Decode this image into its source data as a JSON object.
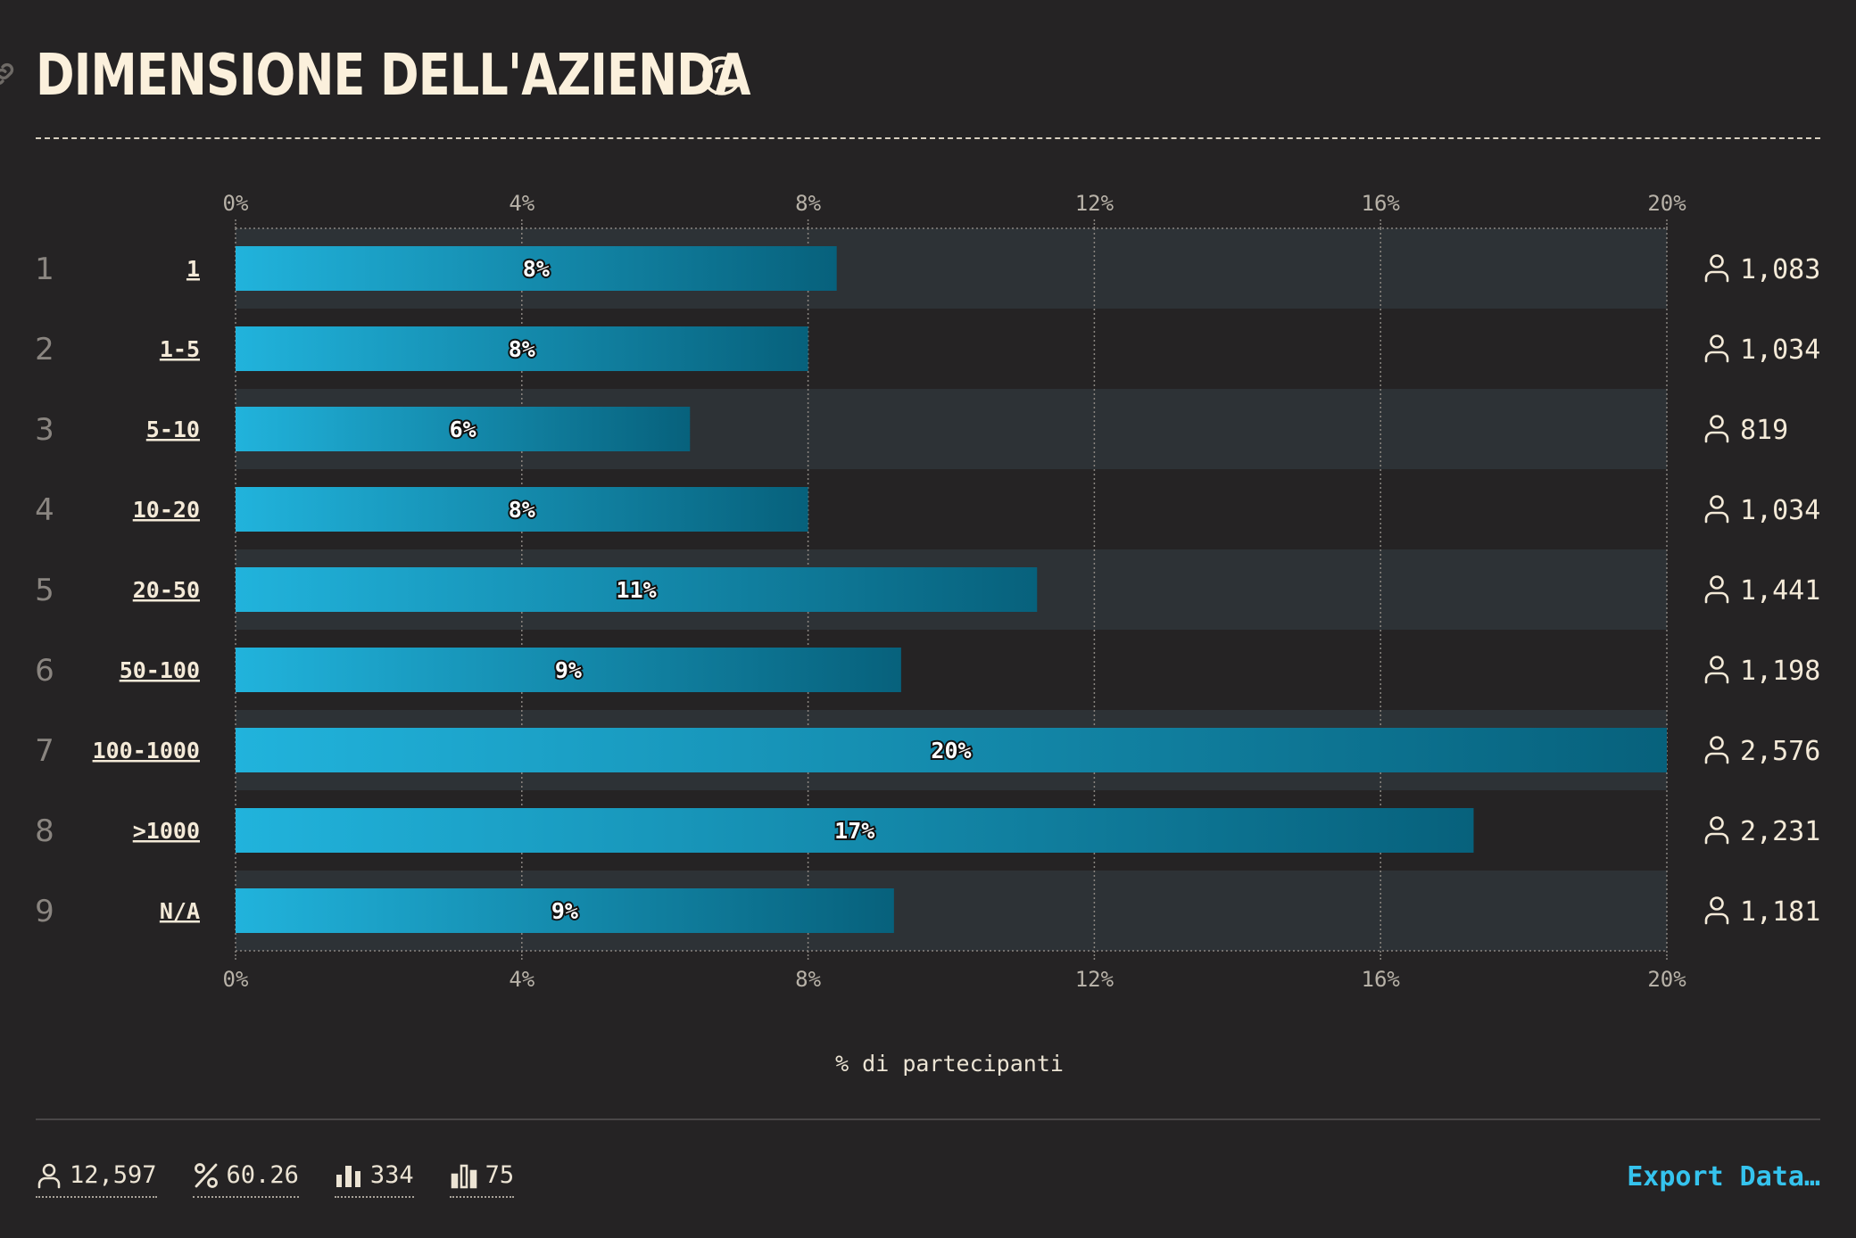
{
  "header": {
    "title": "DIMENSIONE DELL'AZIENDA"
  },
  "colors": {
    "background": "#252324",
    "bar_light": "#21b3dc",
    "bar_dark": "#07617c",
    "stripe": "#2d3236",
    "accent": "#35c3ee",
    "text": "#f4ead8"
  },
  "chart_data": {
    "type": "bar",
    "orientation": "horizontal",
    "categories": [
      "1",
      "1-5",
      "5-10",
      "10-20",
      "20-50",
      "50-100",
      "100-1000",
      ">1000",
      "N/A"
    ],
    "ranks": [
      "1",
      "2",
      "3",
      "4",
      "5",
      "6",
      "7",
      "8",
      "9"
    ],
    "values": [
      8.4,
      8.0,
      6.35,
      8.0,
      11.2,
      9.3,
      20.0,
      17.3,
      9.2
    ],
    "value_labels": [
      "8%",
      "8%",
      "6%",
      "8%",
      "11%",
      "9%",
      "20%",
      "17%",
      "9%"
    ],
    "counts": [
      "1,083",
      "1,034",
      "819",
      "1,034",
      "1,441",
      "1,198",
      "2,576",
      "2,231",
      "1,181"
    ],
    "xlim": [
      0,
      20
    ],
    "xticks": [
      "0%",
      "4%",
      "8%",
      "12%",
      "16%",
      "20%"
    ],
    "xlabel": "% di partecipanti",
    "grid": true
  },
  "footer": {
    "stats": [
      {
        "icon": "person-icon",
        "value": "12,597"
      },
      {
        "icon": "percent-icon",
        "value": "60.26"
      },
      {
        "icon": "bar-chart-filled-icon",
        "value": "334"
      },
      {
        "icon": "bar-chart-outline-icon",
        "value": "75"
      }
    ],
    "export_label": "Export Data…"
  }
}
